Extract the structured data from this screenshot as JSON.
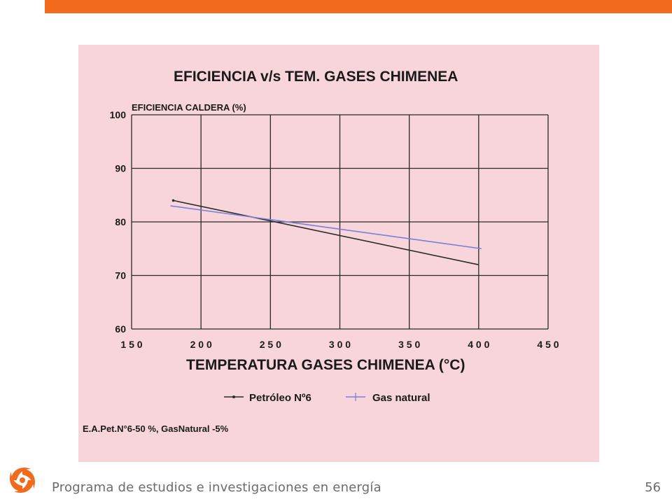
{
  "slide": {
    "accent_color": "#f26a1b",
    "footer_text": "Programa de estudios e investigaciones en energía",
    "page_number": "56"
  },
  "chart_data": {
    "type": "line",
    "title": "EFICIENCIA v/s TEM. GASES CHIMENEA",
    "ylabel": "EFICIENCIA CALDERA (%)",
    "xlabel": "TEMPERATURA GASES CHIMENEA (°C)",
    "xlim": [
      150,
      450
    ],
    "ylim": [
      60,
      100
    ],
    "x_ticks": [
      "1 5 0",
      "2 0 0",
      "2 5 0",
      "3 0 0",
      "3 5 0",
      "4 0 0",
      "4 5 0"
    ],
    "y_ticks": [
      "60",
      "70",
      "80",
      "90",
      "100"
    ],
    "grid": true,
    "background_color": "#f7d5da",
    "series": [
      {
        "name": "Petróleo Nº6",
        "color": "#2b2b2b",
        "x": [
          180,
          400
        ],
        "y": [
          84,
          72
        ]
      },
      {
        "name": "Gas natural",
        "color": "#7b7fd9",
        "x": [
          178,
          402
        ],
        "y": [
          83,
          75
        ]
      }
    ],
    "legend_position": "bottom-center",
    "annotation": "E.A.Pet.N°6-50 %, GasNatural -5%"
  }
}
